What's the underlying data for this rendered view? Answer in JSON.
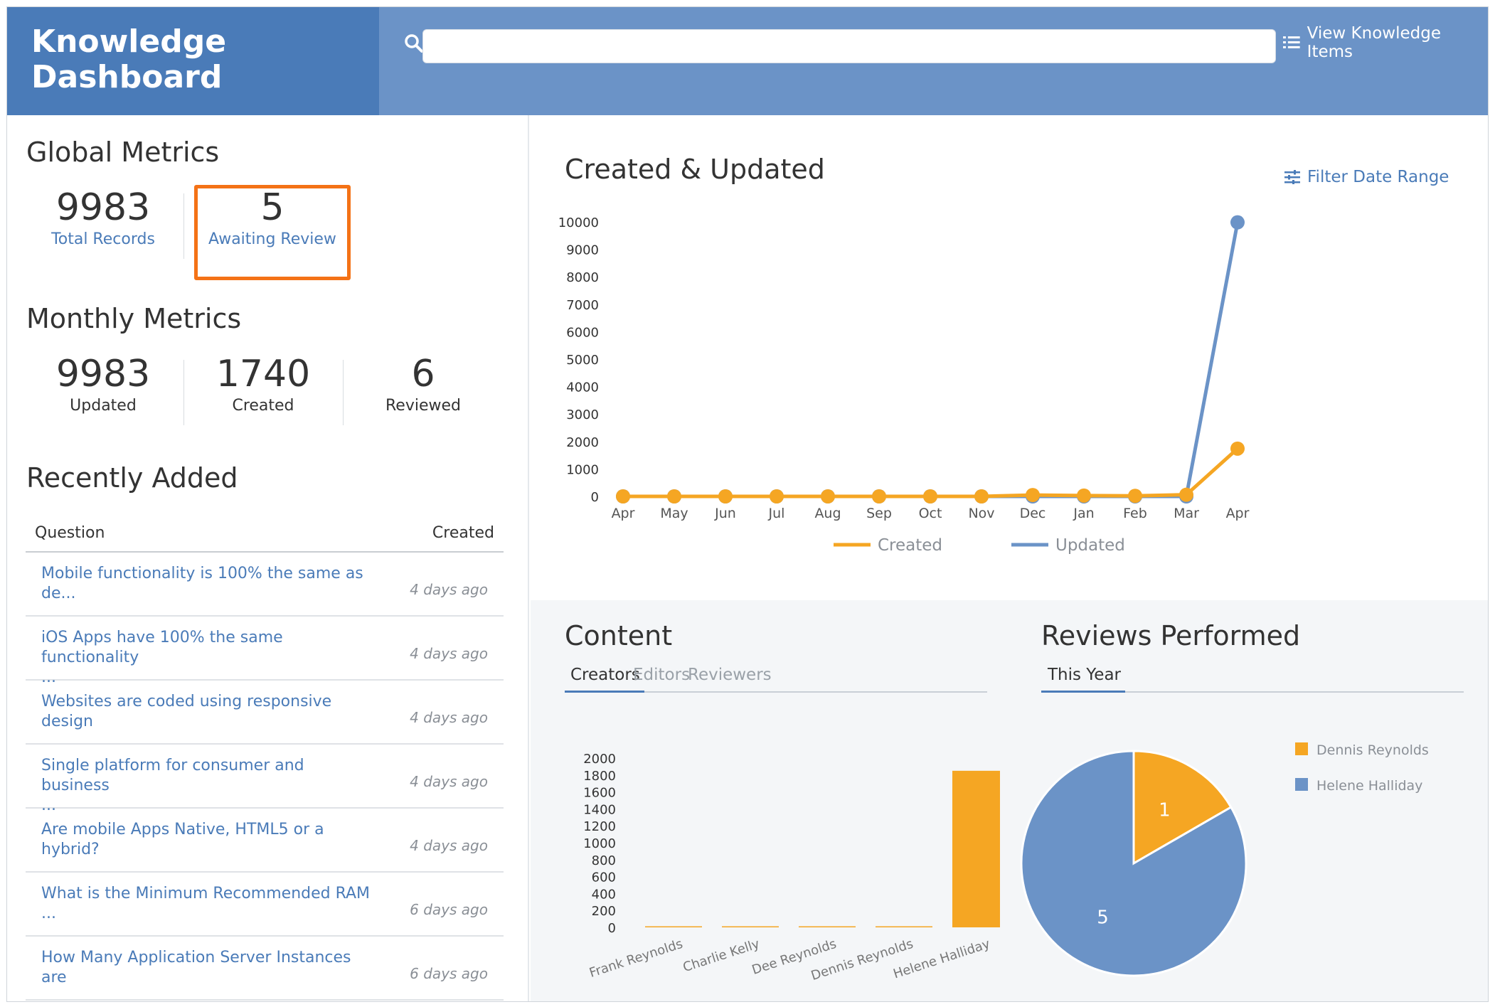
{
  "header": {
    "title_line1": "Knowledge",
    "title_line2": "Dashboard",
    "search_placeholder": "",
    "view_items_label": "View Knowledge Items",
    "colors": {
      "brand": "#4a7bb8",
      "bar": "#6b93c7"
    }
  },
  "global_metrics": {
    "title": "Global Metrics",
    "total_records": {
      "value": "9983",
      "label": "Total Records"
    },
    "awaiting_review": {
      "value": "5",
      "label": "Awaiting Review"
    }
  },
  "monthly_metrics": {
    "title": "Monthly Metrics",
    "updated": {
      "value": "9983",
      "label": "Updated"
    },
    "created": {
      "value": "1740",
      "label": "Created"
    },
    "reviewed": {
      "value": "6",
      "label": "Reviewed"
    }
  },
  "recently_added": {
    "title": "Recently Added",
    "col_question": "Question",
    "col_created": "Created",
    "rows": [
      {
        "q1": "Mobile functionality is 100% the same as",
        "q2": "de...",
        "date": "4 days ago"
      },
      {
        "q1": "iOS Apps have 100% the same functionality",
        "q2": "...",
        "date": "4 days ago"
      },
      {
        "q1": "Websites are coded using responsive",
        "q2": "design",
        "date": "4 days ago"
      },
      {
        "q1": "Single platform for consumer and business",
        "q2": "...",
        "date": "4 days ago"
      },
      {
        "q1": "Are mobile Apps Native, HTML5 or a",
        "q2": "hybrid?",
        "date": "4 days ago"
      },
      {
        "q1": "What is the Minimum Recommended RAM",
        "q2": "...",
        "date": "6 days ago"
      },
      {
        "q1": "How Many Application Server Instances",
        "q2": "are",
        "date": "6 days ago"
      }
    ]
  },
  "created_updated": {
    "title": "Created & Updated",
    "filter_label": "Filter Date Range"
  },
  "content": {
    "title": "Content",
    "tabs": [
      "Creators",
      "Editors",
      "Reviewers"
    ],
    "active_tab": "Creators"
  },
  "reviews": {
    "title": "Reviews Performed",
    "tab": "This Year"
  },
  "chart_data": [
    {
      "type": "line",
      "title": "Created & Updated",
      "categories": [
        "Apr",
        "May",
        "Jun",
        "Jul",
        "Aug",
        "Sep",
        "Oct",
        "Nov",
        "Dec",
        "Jan",
        "Feb",
        "Mar",
        "Apr"
      ],
      "ylim": [
        0,
        10000
      ],
      "yticks": [
        0,
        1000,
        2000,
        3000,
        4000,
        5000,
        6000,
        7000,
        8000,
        9000,
        10000
      ],
      "series": [
        {
          "name": "Created",
          "color": "#f5a623",
          "values": [
            0,
            0,
            0,
            0,
            0,
            0,
            0,
            0,
            50,
            30,
            20,
            60,
            1740
          ]
        },
        {
          "name": "Updated",
          "color": "#6b93c7",
          "values": [
            0,
            0,
            0,
            0,
            0,
            0,
            0,
            0,
            0,
            0,
            0,
            0,
            9983
          ]
        }
      ],
      "legend": "bottom"
    },
    {
      "type": "bar",
      "categories": [
        "Frank Reynolds",
        "Charlie Kelly",
        "Dee Reynolds",
        "Dennis Reynolds",
        "Helene Halliday"
      ],
      "values": [
        5,
        5,
        10,
        10,
        1850
      ],
      "color": "#f5a623",
      "ylim": [
        0,
        2000
      ],
      "yticks": [
        0,
        200,
        400,
        600,
        800,
        1000,
        1200,
        1400,
        1600,
        1800,
        2000
      ]
    },
    {
      "type": "pie",
      "labels": [
        "Dennis Reynolds",
        "Helene Halliday"
      ],
      "values": [
        1,
        5
      ],
      "colors": [
        "#f5a623",
        "#6b93c7"
      ],
      "legend": "right"
    }
  ]
}
